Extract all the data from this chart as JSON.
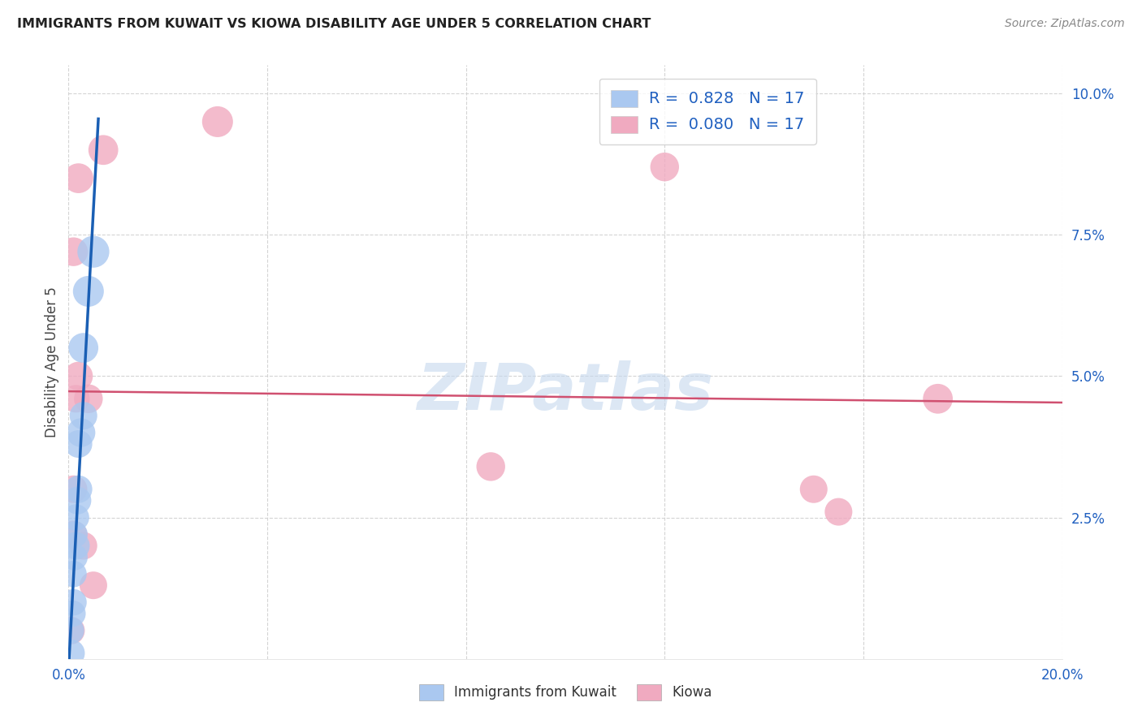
{
  "title": "IMMIGRANTS FROM KUWAIT VS KIOWA DISABILITY AGE UNDER 5 CORRELATION CHART",
  "source": "Source: ZipAtlas.com",
  "ylabel": "Disability Age Under 5",
  "watermark": "ZIPatlas",
  "xlim": [
    0.0,
    0.2
  ],
  "ylim": [
    0.0,
    0.105
  ],
  "xticks": [
    0.0,
    0.04,
    0.08,
    0.12,
    0.16,
    0.2
  ],
  "xticklabels": [
    "0.0%",
    "",
    "",
    "",
    "",
    "20.0%"
  ],
  "yticks": [
    0.025,
    0.05,
    0.075,
    0.1
  ],
  "yticklabels": [
    "2.5%",
    "5.0%",
    "7.5%",
    "10.0%"
  ],
  "kuwait_R": 0.828,
  "kuwait_N": 17,
  "kiowa_R": 0.08,
  "kiowa_N": 17,
  "kuwait_x": [
    0.0005,
    0.0005,
    0.0008,
    0.001,
    0.001,
    0.0012,
    0.0012,
    0.0015,
    0.0015,
    0.0018,
    0.002,
    0.002,
    0.0025,
    0.003,
    0.003,
    0.004,
    0.005
  ],
  "kuwait_y": [
    0.001,
    0.005,
    0.008,
    0.01,
    0.015,
    0.018,
    0.022,
    0.02,
    0.025,
    0.028,
    0.03,
    0.038,
    0.04,
    0.043,
    0.055,
    0.065,
    0.072
  ],
  "kuwait_size": [
    60,
    55,
    55,
    55,
    55,
    55,
    55,
    60,
    55,
    60,
    60,
    60,
    65,
    60,
    70,
    75,
    80
  ],
  "kiowa_x": [
    0.0005,
    0.001,
    0.001,
    0.001,
    0.0015,
    0.002,
    0.002,
    0.003,
    0.004,
    0.005,
    0.007,
    0.03,
    0.085,
    0.12,
    0.15,
    0.155,
    0.175
  ],
  "kiowa_y": [
    0.005,
    0.022,
    0.03,
    0.072,
    0.046,
    0.05,
    0.085,
    0.02,
    0.046,
    0.013,
    0.09,
    0.095,
    0.034,
    0.087,
    0.03,
    0.026,
    0.046
  ],
  "kiowa_size": [
    60,
    60,
    60,
    65,
    60,
    65,
    70,
    60,
    65,
    60,
    70,
    75,
    65,
    65,
    60,
    60,
    70
  ],
  "kuwait_color": "#aac8f0",
  "kiowa_color": "#f0aac0",
  "kuwait_line_color": "#1a5fb4",
  "kiowa_line_color": "#d05070",
  "trendline_dashed_color": "#90b8d8",
  "legend_text_color": "#2060c0",
  "grid_color": "#d0d0d0",
  "title_color": "#222222",
  "watermark_color": "#c5d8ee",
  "source_color": "#888888",
  "tick_label_color": "#2060c0"
}
